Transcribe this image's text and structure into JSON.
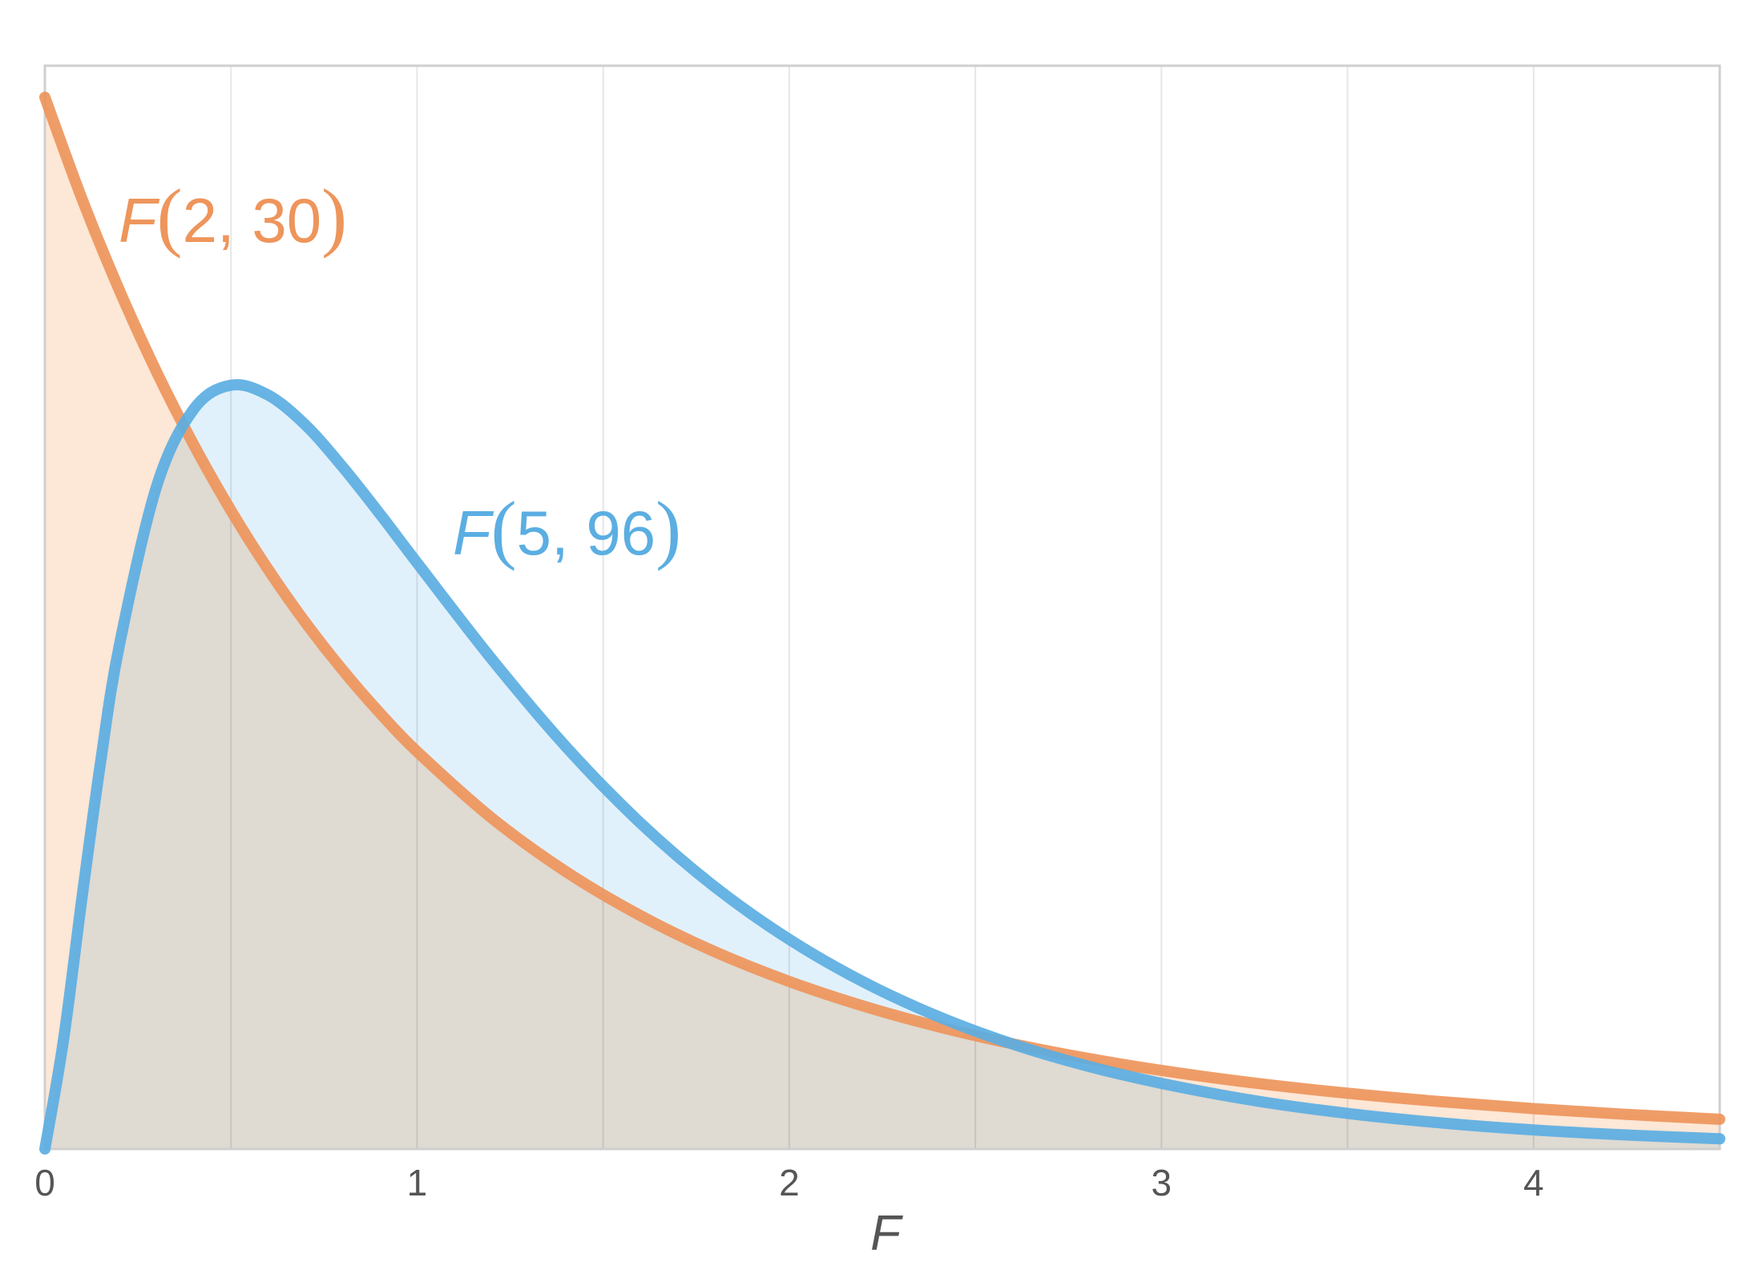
{
  "chart_data": {
    "type": "area",
    "xlabel": "F",
    "ylabel": "",
    "title": "",
    "xlim": [
      0,
      4.5
    ],
    "ylim": [
      0,
      1.03
    ],
    "x_ticks": [
      "0",
      "1",
      "2",
      "3",
      "4"
    ],
    "grid": "vertical",
    "legend": "none",
    "series": [
      {
        "name": "F(2, 30)",
        "name_parts": {
          "letter": "F",
          "open": "(",
          "args": "2, 30",
          "close": ")"
        },
        "color": "#EE955B",
        "fill": "#FDE3CF",
        "x": [
          0,
          0.1,
          0.2,
          0.3,
          0.4,
          0.5,
          0.6,
          0.7,
          0.8,
          0.9,
          1.0,
          1.2,
          1.4,
          1.6,
          1.8,
          2.0,
          2.2,
          2.4,
          2.6,
          2.8,
          3.0,
          3.25,
          3.5,
          3.75,
          4.0,
          4.25,
          4.5
        ],
        "y": [
          1.0,
          0.9032,
          0.8166,
          0.739,
          0.6695,
          0.6071,
          0.551,
          0.5007,
          0.4554,
          0.4146,
          0.3779,
          0.3149,
          0.2637,
          0.2219,
          0.1876,
          0.1593,
          0.1358,
          0.1163,
          0.1,
          0.0863,
          0.0747,
          0.0627,
          0.053,
          0.045,
          0.0384,
          0.0329,
          0.0283
        ]
      },
      {
        "name": "F(5, 96)",
        "name_parts": {
          "letter": "F",
          "open": "(",
          "args": "5, 96",
          "close": ")"
        },
        "color": "#5BAEE2",
        "fill": "#DCEEFA",
        "x": [
          0,
          0.05,
          0.1,
          0.15,
          0.2,
          0.3,
          0.4,
          0.5,
          0.6,
          0.7,
          0.8,
          0.9,
          1.0,
          1.2,
          1.4,
          1.6,
          1.8,
          2.0,
          2.2,
          2.4,
          2.6,
          2.8,
          3.0,
          3.25,
          3.5,
          3.75,
          4.0,
          4.25,
          4.5
        ],
        "y": [
          0,
          0.1035,
          0.2395,
          0.3687,
          0.4787,
          0.6298,
          0.7035,
          0.7262,
          0.7168,
          0.6885,
          0.6485,
          0.6039,
          0.5574,
          0.4661,
          0.3825,
          0.31,
          0.2492,
          0.1993,
          0.1587,
          0.126,
          0.0998,
          0.079,
          0.0624,
          0.046,
          0.0338,
          0.0248,
          0.0181,
          0.0133,
          0.0097
        ]
      }
    ]
  }
}
